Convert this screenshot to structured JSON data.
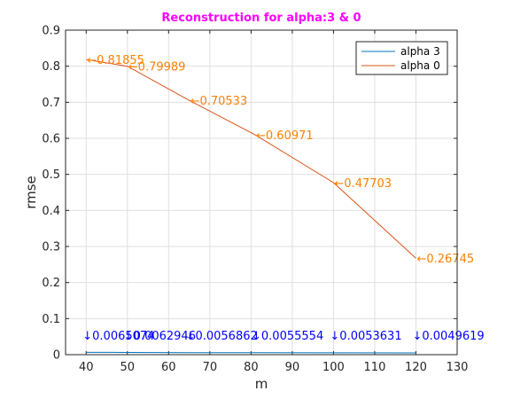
{
  "chart_data": {
    "type": "line",
    "title": "Reconstruction for alpha:3 & 0",
    "xlabel": "m",
    "ylabel": "rmse",
    "xlim": [
      35,
      130
    ],
    "ylim": [
      0,
      0.9
    ],
    "xticks": [
      "40",
      "50",
      "60",
      "70",
      "80",
      "90",
      "100",
      "110",
      "120",
      "130"
    ],
    "yticks": [
      "0",
      "0.1",
      "0.2",
      "0.3",
      "0.4",
      "0.5",
      "0.6",
      "0.7",
      "0.8",
      "0.9"
    ],
    "grid": true,
    "legend_position": "top-right",
    "colors": {
      "title": "#ff00ff",
      "alpha3": "#0072bd",
      "alpha0": "#d95319",
      "label_alpha3": "#0000ff",
      "label_alpha0": "#ff8000"
    },
    "series": [
      {
        "name": "alpha 3",
        "x": [
          40,
          50,
          65,
          81,
          100,
          120
        ],
        "y": [
          0.0065074,
          0.0062946,
          0.0056862,
          0.0055554,
          0.0053631,
          0.0049619
        ],
        "labels": [
          "↓0.0065074",
          "↓0.0062946",
          "↓0.0056862",
          "↓0.0055554",
          "↓0.0053631",
          "↓0.0049619"
        ]
      },
      {
        "name": "alpha 0",
        "x": [
          40,
          50,
          65,
          81,
          100,
          120
        ],
        "y": [
          0.81855,
          0.79989,
          0.70533,
          0.60971,
          0.47703,
          0.26745
        ],
        "labels": [
          "←0.81855",
          "←0.79989",
          "←0.70533",
          "←0.60971",
          "←0.47703",
          "←0.26745"
        ]
      }
    ]
  }
}
